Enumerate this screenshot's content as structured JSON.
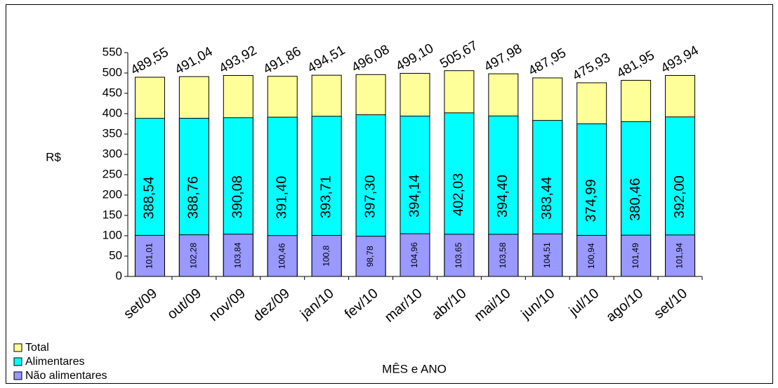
{
  "chart_data": {
    "type": "bar",
    "overlay": true,
    "x_label": "MÊS e ANO",
    "y_label": "R$",
    "categories": [
      "set/09",
      "out/09",
      "nov/09",
      "dez/09",
      "jan/10",
      "fev/10",
      "mar/10",
      "abr/10",
      "mai/10",
      "jun/10",
      "jul/10",
      "ago/10",
      "set/10"
    ],
    "series": [
      {
        "name": "Total",
        "color": "#ffff99",
        "values": [
          489.55,
          491.04,
          493.92,
          491.86,
          494.51,
          496.08,
          499.1,
          505.67,
          497.98,
          487.95,
          475.93,
          481.95,
          493.94
        ],
        "value_labels": [
          "489,55",
          "491,04",
          "493,92",
          "491,86",
          "494,51",
          "496,08",
          "499,10",
          "505,67",
          "497,98",
          "487,95",
          "475,93",
          "481,95",
          "493,94"
        ]
      },
      {
        "name": "Alimentares",
        "color": "#00ffff",
        "values": [
          388.54,
          388.76,
          390.08,
          391.4,
          393.71,
          397.3,
          394.14,
          402.03,
          394.4,
          383.44,
          374.99,
          380.46,
          392.0
        ],
        "value_labels": [
          "388,54",
          "388,76",
          "390,08",
          "391,40",
          "393,71",
          "397,30",
          "394,14",
          "402,03",
          "394,40",
          "383,44",
          "374,99",
          "380,46",
          "392,00"
        ]
      },
      {
        "name": "Não alimentares",
        "color": "#9999ff",
        "values": [
          101.01,
          102.28,
          103.84,
          100.46,
          100.8,
          98.78,
          104.96,
          103.65,
          103.58,
          104.51,
          100.94,
          101.49,
          101.94
        ],
        "value_labels": [
          "101,01",
          "102,28",
          "103,84",
          "100,46",
          "100,8",
          "98,78",
          "104,96",
          "103,65",
          "103,58",
          "104,51",
          "100,94",
          "101,49",
          "101,94"
        ]
      }
    ],
    "ylim": [
      0,
      550
    ],
    "yticks": [
      0,
      50,
      100,
      150,
      200,
      250,
      300,
      350,
      400,
      450,
      500,
      550
    ],
    "grid": false
  }
}
